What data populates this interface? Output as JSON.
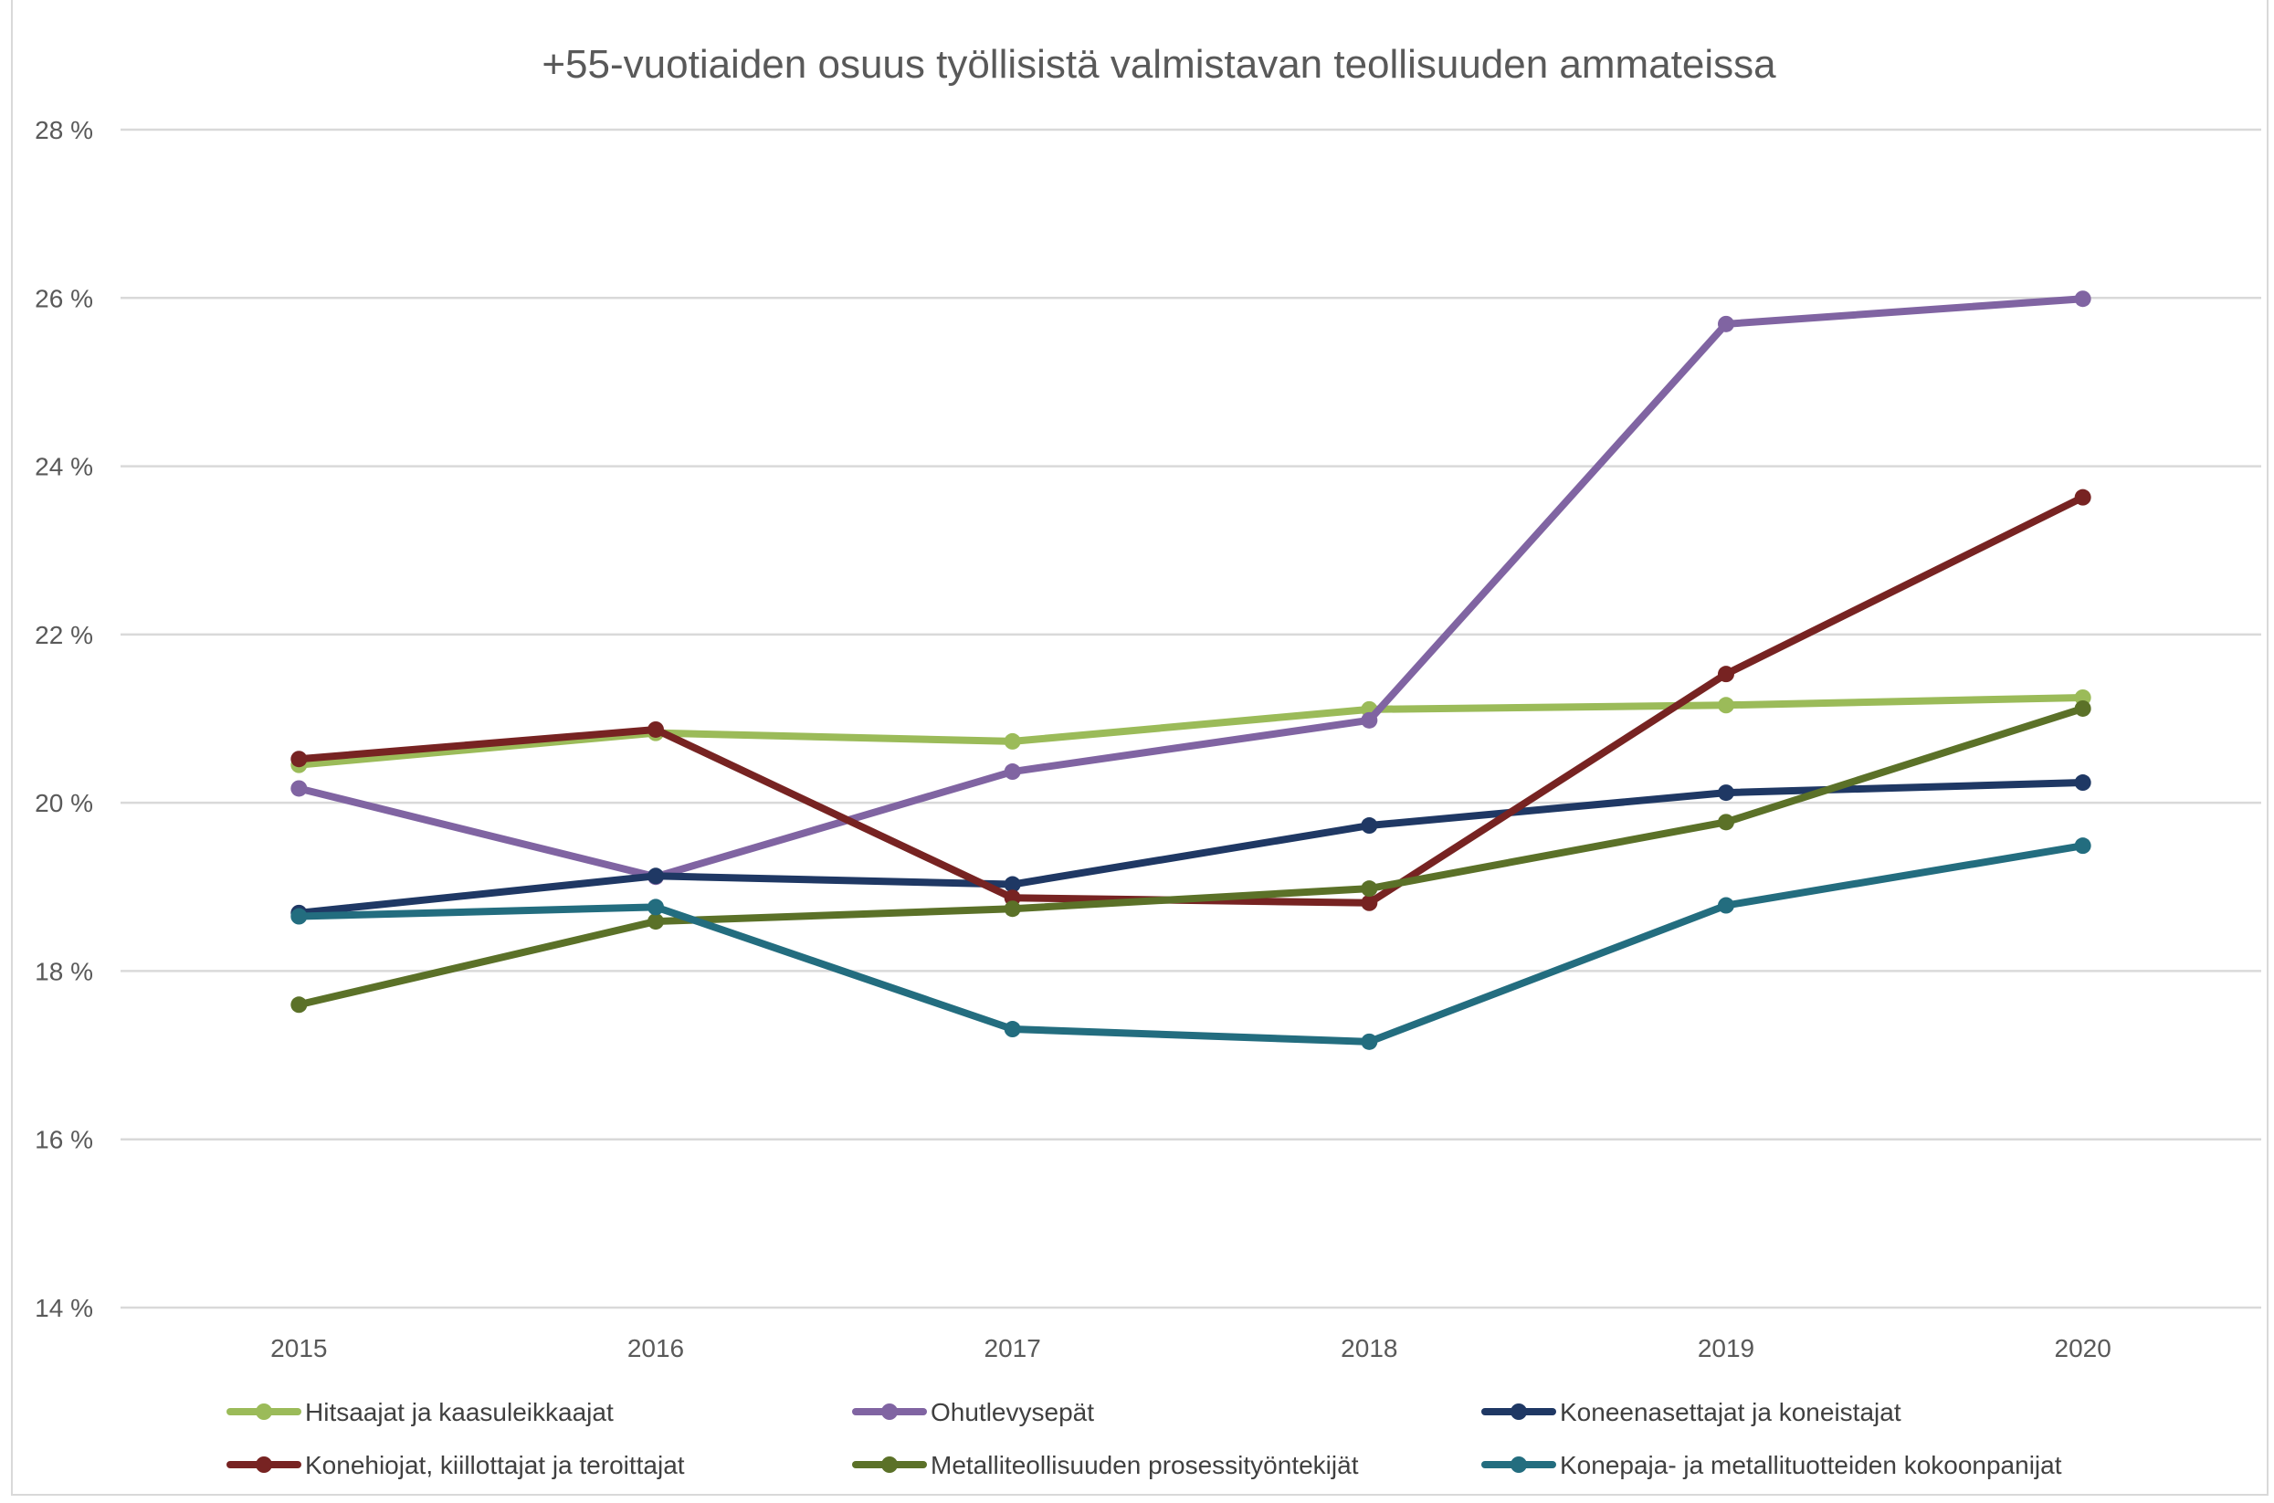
{
  "chart_data": {
    "type": "line",
    "title": "+55-vuotiaiden osuus työllisistä valmistavan teollisuuden ammateissa",
    "xlabel": "",
    "ylabel": "",
    "categories": [
      "2015",
      "2016",
      "2017",
      "2018",
      "2019",
      "2020"
    ],
    "ylim": [
      14,
      28
    ],
    "yticks": [
      14,
      16,
      18,
      20,
      22,
      24,
      26,
      28
    ],
    "ytick_labels": [
      "14 %",
      "16 %",
      "18 %",
      "20 %",
      "22 %",
      "24 %",
      "26 %",
      "28 %"
    ],
    "grid": true,
    "legend_position": "bottom",
    "series": [
      {
        "name": "Hitsaajat ja kaasuleikkaajat",
        "color": "#9bbb59",
        "values": [
          20.45,
          20.83,
          20.73,
          21.11,
          21.16,
          21.25
        ]
      },
      {
        "name": "Ohutlevysepät",
        "color": "#8064a2",
        "values": [
          20.17,
          19.12,
          20.37,
          20.98,
          25.69,
          25.99
        ]
      },
      {
        "name": "Koneenasettajat ja koneistajat",
        "color": "#1f3864",
        "values": [
          18.69,
          19.13,
          19.03,
          19.73,
          20.12,
          20.24
        ]
      },
      {
        "name": "Konehiojat, kiillottajat ja teroittajat",
        "color": "#772322",
        "values": [
          20.52,
          20.87,
          18.87,
          18.81,
          21.53,
          23.63
        ]
      },
      {
        "name": "Metalliteollisuuden prosessityöntekijät",
        "color": "#5b7128",
        "values": [
          17.6,
          18.59,
          18.74,
          18.98,
          19.77,
          21.12
        ]
      },
      {
        "name": "Konepaja- ja metallituotteiden kokoonpanijat",
        "color": "#236d7f",
        "values": [
          18.65,
          18.76,
          17.31,
          17.16,
          18.78,
          19.49
        ]
      }
    ]
  }
}
